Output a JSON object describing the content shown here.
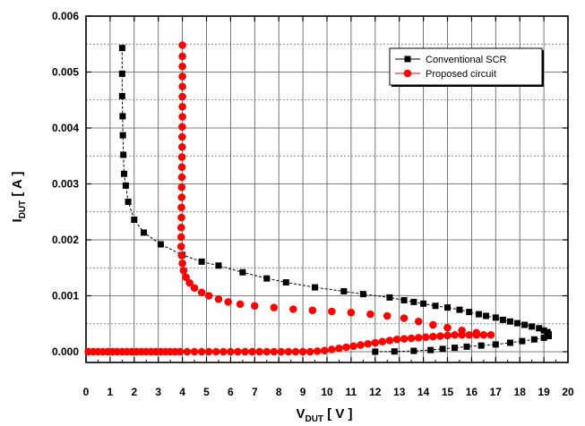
{
  "chart_data": {
    "type": "scatter",
    "title": "",
    "xlabel": {
      "main": "V",
      "sub": "DUT",
      "unit": " [ V ]"
    },
    "ylabel": {
      "main": "I",
      "sub": "DUT",
      "unit": " [ A ]"
    },
    "xlim": [
      0,
      20
    ],
    "ylim": [
      -0.0002,
      0.006
    ],
    "x_ticks": [
      0,
      1,
      2,
      3,
      4,
      5,
      6,
      7,
      8,
      9,
      10,
      11,
      12,
      13,
      14,
      15,
      16,
      17,
      18,
      19,
      20
    ],
    "y_ticks": [
      0.0,
      0.001,
      0.002,
      0.003,
      0.004,
      0.005,
      0.006
    ],
    "y_tick_labels": [
      "0.000",
      "0.001",
      "0.002",
      "0.003",
      "0.004",
      "0.005",
      "0.006"
    ],
    "grid": true,
    "legend_position": "top-right",
    "series": [
      {
        "name": "Conventional SCR",
        "color": "#000000",
        "marker": "square",
        "points": [
          [
            1.5,
            0.00543
          ],
          [
            1.5,
            0.00497
          ],
          [
            1.5,
            0.00457
          ],
          [
            1.52,
            0.00421
          ],
          [
            1.53,
            0.00387
          ],
          [
            1.55,
            0.00352
          ],
          [
            1.58,
            0.00318
          ],
          [
            1.65,
            0.00297
          ],
          [
            1.75,
            0.00268
          ],
          [
            2.0,
            0.00236
          ],
          [
            2.4,
            0.00213
          ],
          [
            3.1,
            0.00192
          ],
          [
            4.0,
            0.00173
          ],
          [
            4.8,
            0.00161
          ],
          [
            5.5,
            0.00154
          ],
          [
            6.5,
            0.00142
          ],
          [
            7.5,
            0.00131
          ],
          [
            8.3,
            0.00124
          ],
          [
            9.5,
            0.00115
          ],
          [
            10.7,
            0.00108
          ],
          [
            11.5,
            0.00103
          ],
          [
            12.6,
            0.00097
          ],
          [
            13.2,
            0.00092
          ],
          [
            13.6,
            0.00089
          ],
          [
            14.0,
            0.00086
          ],
          [
            14.5,
            0.00082
          ],
          [
            15.0,
            0.00079
          ],
          [
            15.5,
            0.00075
          ],
          [
            15.9,
            0.00071
          ],
          [
            16.3,
            0.00067
          ],
          [
            16.6,
            0.00064
          ],
          [
            17.0,
            0.00061
          ],
          [
            17.3,
            0.00057
          ],
          [
            17.6,
            0.00054
          ],
          [
            17.9,
            0.00051
          ],
          [
            18.2,
            0.00048
          ],
          [
            18.5,
            0.00045
          ],
          [
            18.8,
            0.00042
          ],
          [
            19.0,
            0.00038
          ],
          [
            19.15,
            0.00035
          ],
          [
            19.2,
            0.00031
          ],
          [
            19.2,
            0.00028
          ],
          [
            19.0,
            0.00025
          ],
          [
            18.6,
            0.00022
          ],
          [
            18.1,
            0.00019
          ],
          [
            17.6,
            0.00016
          ],
          [
            17.0,
            0.00013
          ],
          [
            16.4,
            0.00011
          ],
          [
            15.8,
            9e-05
          ],
          [
            15.3,
            7e-05
          ],
          [
            14.8,
            5e-05
          ],
          [
            14.3,
            3e-05
          ],
          [
            13.6,
            1.5e-05
          ],
          [
            12.8,
            5e-06
          ],
          [
            12.0,
            0.0
          ]
        ]
      },
      {
        "name": "Proposed circuit",
        "color": "#ff0000",
        "marker": "circle",
        "points": [
          [
            0.1,
            0.0
          ],
          [
            0.3,
            0.0
          ],
          [
            0.5,
            0.0
          ],
          [
            0.7,
            0.0
          ],
          [
            0.9,
            0.0
          ],
          [
            1.1,
            0.0
          ],
          [
            1.3,
            0.0
          ],
          [
            1.5,
            0.0
          ],
          [
            1.7,
            0.0
          ],
          [
            1.9,
            0.0
          ],
          [
            2.1,
            0.0
          ],
          [
            2.3,
            0.0
          ],
          [
            2.5,
            0.0
          ],
          [
            2.7,
            0.0
          ],
          [
            2.9,
            0.0
          ],
          [
            3.1,
            0.0
          ],
          [
            3.3,
            0.0
          ],
          [
            3.5,
            0.0
          ],
          [
            3.7,
            0.0
          ],
          [
            3.9,
            0.0
          ],
          [
            4.2,
            0.0
          ],
          [
            4.5,
            0.0
          ],
          [
            4.8,
            0.0
          ],
          [
            5.1,
            0.0
          ],
          [
            5.4,
            0.0
          ],
          [
            5.7,
            0.0
          ],
          [
            6.0,
            0.0
          ],
          [
            6.3,
            0.0
          ],
          [
            6.6,
            0.0
          ],
          [
            6.9,
            0.0
          ],
          [
            7.2,
            0.0
          ],
          [
            7.5,
            0.0
          ],
          [
            7.8,
            0.0
          ],
          [
            8.1,
            0.0
          ],
          [
            8.4,
            0.0
          ],
          [
            8.7,
            0.0
          ],
          [
            9.0,
            0.0
          ],
          [
            9.3,
            0.0
          ],
          [
            9.6,
            1e-05
          ],
          [
            9.9,
            2e-05
          ],
          [
            10.2,
            4e-05
          ],
          [
            10.5,
            6e-05
          ],
          [
            10.8,
            8e-05
          ],
          [
            11.1,
            0.0001
          ],
          [
            11.4,
            0.00012
          ],
          [
            11.7,
            0.00014
          ],
          [
            12.0,
            0.00016
          ],
          [
            12.3,
            0.00018
          ],
          [
            12.6,
            0.0002
          ],
          [
            12.9,
            0.00022
          ],
          [
            13.2,
            0.00023
          ],
          [
            13.5,
            0.00024
          ],
          [
            13.8,
            0.00025
          ],
          [
            14.1,
            0.00026
          ],
          [
            14.4,
            0.00027
          ],
          [
            14.7,
            0.00028
          ],
          [
            15.0,
            0.00029
          ],
          [
            15.3,
            0.0003
          ],
          [
            15.6,
            0.0003
          ],
          [
            15.9,
            0.0003
          ],
          [
            16.2,
            0.0003
          ],
          [
            16.5,
            0.0003
          ],
          [
            16.8,
            0.0003
          ],
          [
            16.2,
            0.00034
          ],
          [
            15.6,
            0.00038
          ],
          [
            15.0,
            0.00043
          ],
          [
            14.4,
            0.00048
          ],
          [
            13.8,
            0.00054
          ],
          [
            13.2,
            0.0006
          ],
          [
            12.5,
            0.00064
          ],
          [
            11.8,
            0.00067
          ],
          [
            11.0,
            0.0007
          ],
          [
            10.2,
            0.00072
          ],
          [
            9.4,
            0.00074
          ],
          [
            8.6,
            0.00076
          ],
          [
            7.8,
            0.00079
          ],
          [
            7.0,
            0.00082
          ],
          [
            6.4,
            0.00085
          ],
          [
            5.9,
            0.00089
          ],
          [
            5.5,
            0.00094
          ],
          [
            5.1,
            0.001
          ],
          [
            4.8,
            0.00106
          ],
          [
            4.5,
            0.00114
          ],
          [
            4.3,
            0.00123
          ],
          [
            4.15,
            0.00133
          ],
          [
            4.05,
            0.00145
          ],
          [
            4.0,
            0.00158
          ],
          [
            3.97,
            0.00172
          ],
          [
            3.95,
            0.00188
          ],
          [
            3.95,
            0.00205
          ],
          [
            3.95,
            0.00222
          ],
          [
            3.96,
            0.0024
          ],
          [
            3.96,
            0.00258
          ],
          [
            3.97,
            0.00276
          ],
          [
            3.97,
            0.00294
          ],
          [
            3.98,
            0.00312
          ],
          [
            3.98,
            0.0033
          ],
          [
            3.98,
            0.00348
          ],
          [
            3.99,
            0.00366
          ],
          [
            3.99,
            0.00384
          ],
          [
            3.99,
            0.00402
          ],
          [
            4.0,
            0.0042
          ],
          [
            4.0,
            0.00438
          ],
          [
            4.0,
            0.00456
          ],
          [
            4.0,
            0.00474
          ],
          [
            4.0,
            0.00492
          ],
          [
            4.0,
            0.0051
          ],
          [
            4.0,
            0.00528
          ],
          [
            4.0,
            0.00548
          ]
        ]
      }
    ]
  }
}
